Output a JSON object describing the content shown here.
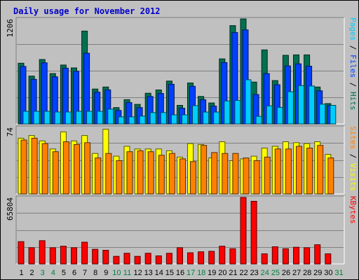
{
  "chart_data": {
    "type": "bar",
    "title": "Daily usage for November 2012",
    "categories": [
      "1",
      "2",
      "3",
      "4",
      "5",
      "6",
      "7",
      "8",
      "9",
      "10",
      "11",
      "12",
      "13",
      "14",
      "15",
      "16",
      "17",
      "18",
      "19",
      "20",
      "21",
      "22",
      "23",
      "24",
      "25",
      "26",
      "27",
      "28",
      "29",
      "30",
      "31"
    ],
    "weekend_days": [
      "3",
      "4",
      "10",
      "11",
      "17",
      "18",
      "24",
      "25",
      "31"
    ],
    "panels": [
      {
        "name": "hits-files-pages",
        "ymax_label": "1206",
        "ymax": 1206,
        "legend": [
          {
            "text": "Pages",
            "color": "#00ccff"
          },
          {
            "text": " / ",
            "color": "#000000"
          },
          {
            "text": "Files",
            "color": "#0040ff"
          },
          {
            "text": " / ",
            "color": "#000000"
          },
          {
            "text": "Hits",
            "color": "#007050"
          }
        ],
        "series": [
          {
            "name": "Hits",
            "color": "#007050",
            "values": [
              697,
              549,
              740,
              578,
              676,
              643,
              1066,
              400,
              424,
              187,
              278,
              224,
              352,
              390,
              492,
              213,
              470,
              315,
              240,
              747,
              1129,
              1206,
              480,
              850,
              498,
              788,
              793,
              793,
              424,
              233,
              0
            ]
          },
          {
            "name": "Files",
            "color": "#0040ff",
            "values": [
              660,
              512,
              702,
              541,
              640,
              605,
              812,
              364,
              391,
              154,
              245,
              187,
              315,
              350,
              455,
              181,
              432,
              278,
              205,
              704,
              1050,
              1080,
              338,
              578,
              450,
              666,
              690,
              663,
              380,
              211,
              0
            ]
          },
          {
            "name": "Pages",
            "color": "#00ccff",
            "values": [
              145,
              145,
              145,
              137,
              137,
              145,
              145,
              145,
              170,
              81,
              81,
              90,
              130,
              130,
              104,
              104,
              210,
              136,
              136,
              264,
              270,
              507,
              87,
              207,
              190,
              370,
              440,
              435,
              227,
              213,
              0
            ]
          }
        ]
      },
      {
        "name": "visits-sites",
        "ymax_label": "74",
        "ymax": 74,
        "legend": [
          {
            "text": "Sites",
            "color": "#ff8000"
          },
          {
            "text": " / ",
            "color": "#000000"
          },
          {
            "text": "Visits",
            "color": "#ffff00"
          }
        ],
        "series": [
          {
            "name": "Visits",
            "color": "#ffff00",
            "values": [
              62,
              65,
              59,
              50,
              69,
              59,
              65,
              45,
              72,
              42,
              53,
              50,
              50,
              50,
              48,
              41,
              56,
              55,
              40,
              58,
              37,
              39,
              42,
              51,
              53,
              58,
              57,
              56,
              58,
              44,
              0
            ]
          },
          {
            "name": "Sites",
            "color": "#ff8000",
            "values": [
              60,
              62,
              56,
              47,
              58,
              55,
              57,
              40,
              45,
              37,
              47,
              48,
              47,
              43,
              45,
              39,
              36,
              54,
              46,
              45,
              45,
              40,
              37,
              41,
              50,
              50,
              53,
              51,
              54,
              40,
              0
            ]
          }
        ]
      },
      {
        "name": "kbytes",
        "ymax_label": "65804",
        "ymax": 65804,
        "legend": [
          {
            "text": "KBytes",
            "color": "#ff0000"
          }
        ],
        "series": [
          {
            "name": "KBytes",
            "color": "#ff0000",
            "values": [
              22000,
              16000,
              23000,
              16000,
              17500,
              16000,
              21500,
              14500,
              13500,
              7500,
              10500,
              7500,
              10500,
              8000,
              10500,
              16000,
              11000,
              12000,
              12500,
              17500,
              15000,
              65804,
              62000,
              10000,
              17000,
              15000,
              16500,
              16000,
              19000,
              10000,
              0
            ]
          }
        ]
      }
    ]
  }
}
